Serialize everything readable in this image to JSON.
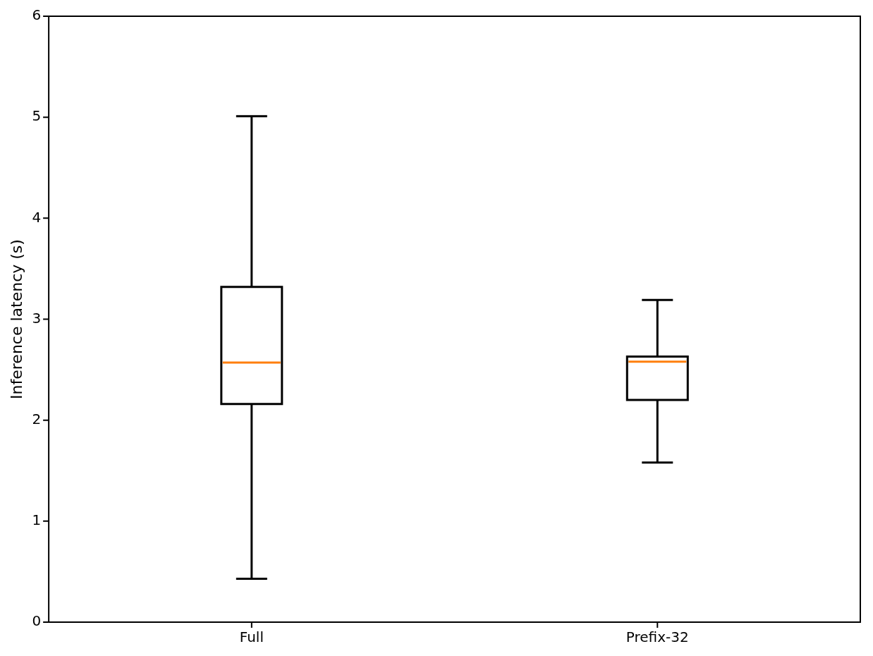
{
  "chart_data": {
    "type": "box",
    "ylabel": "Inference latency (s)",
    "categories": [
      "Full",
      "Prefix-32"
    ],
    "ylim": [
      0,
      6
    ],
    "yticks": [
      0,
      1,
      2,
      3,
      4,
      5,
      6
    ],
    "grid": false,
    "legend": false,
    "boxes": [
      {
        "low": 0.43,
        "q1": 2.16,
        "median": 2.57,
        "q3": 3.32,
        "high": 5.01
      },
      {
        "low": 1.58,
        "q1": 2.2,
        "median": 2.58,
        "q3": 2.63,
        "high": 3.19
      }
    ]
  }
}
